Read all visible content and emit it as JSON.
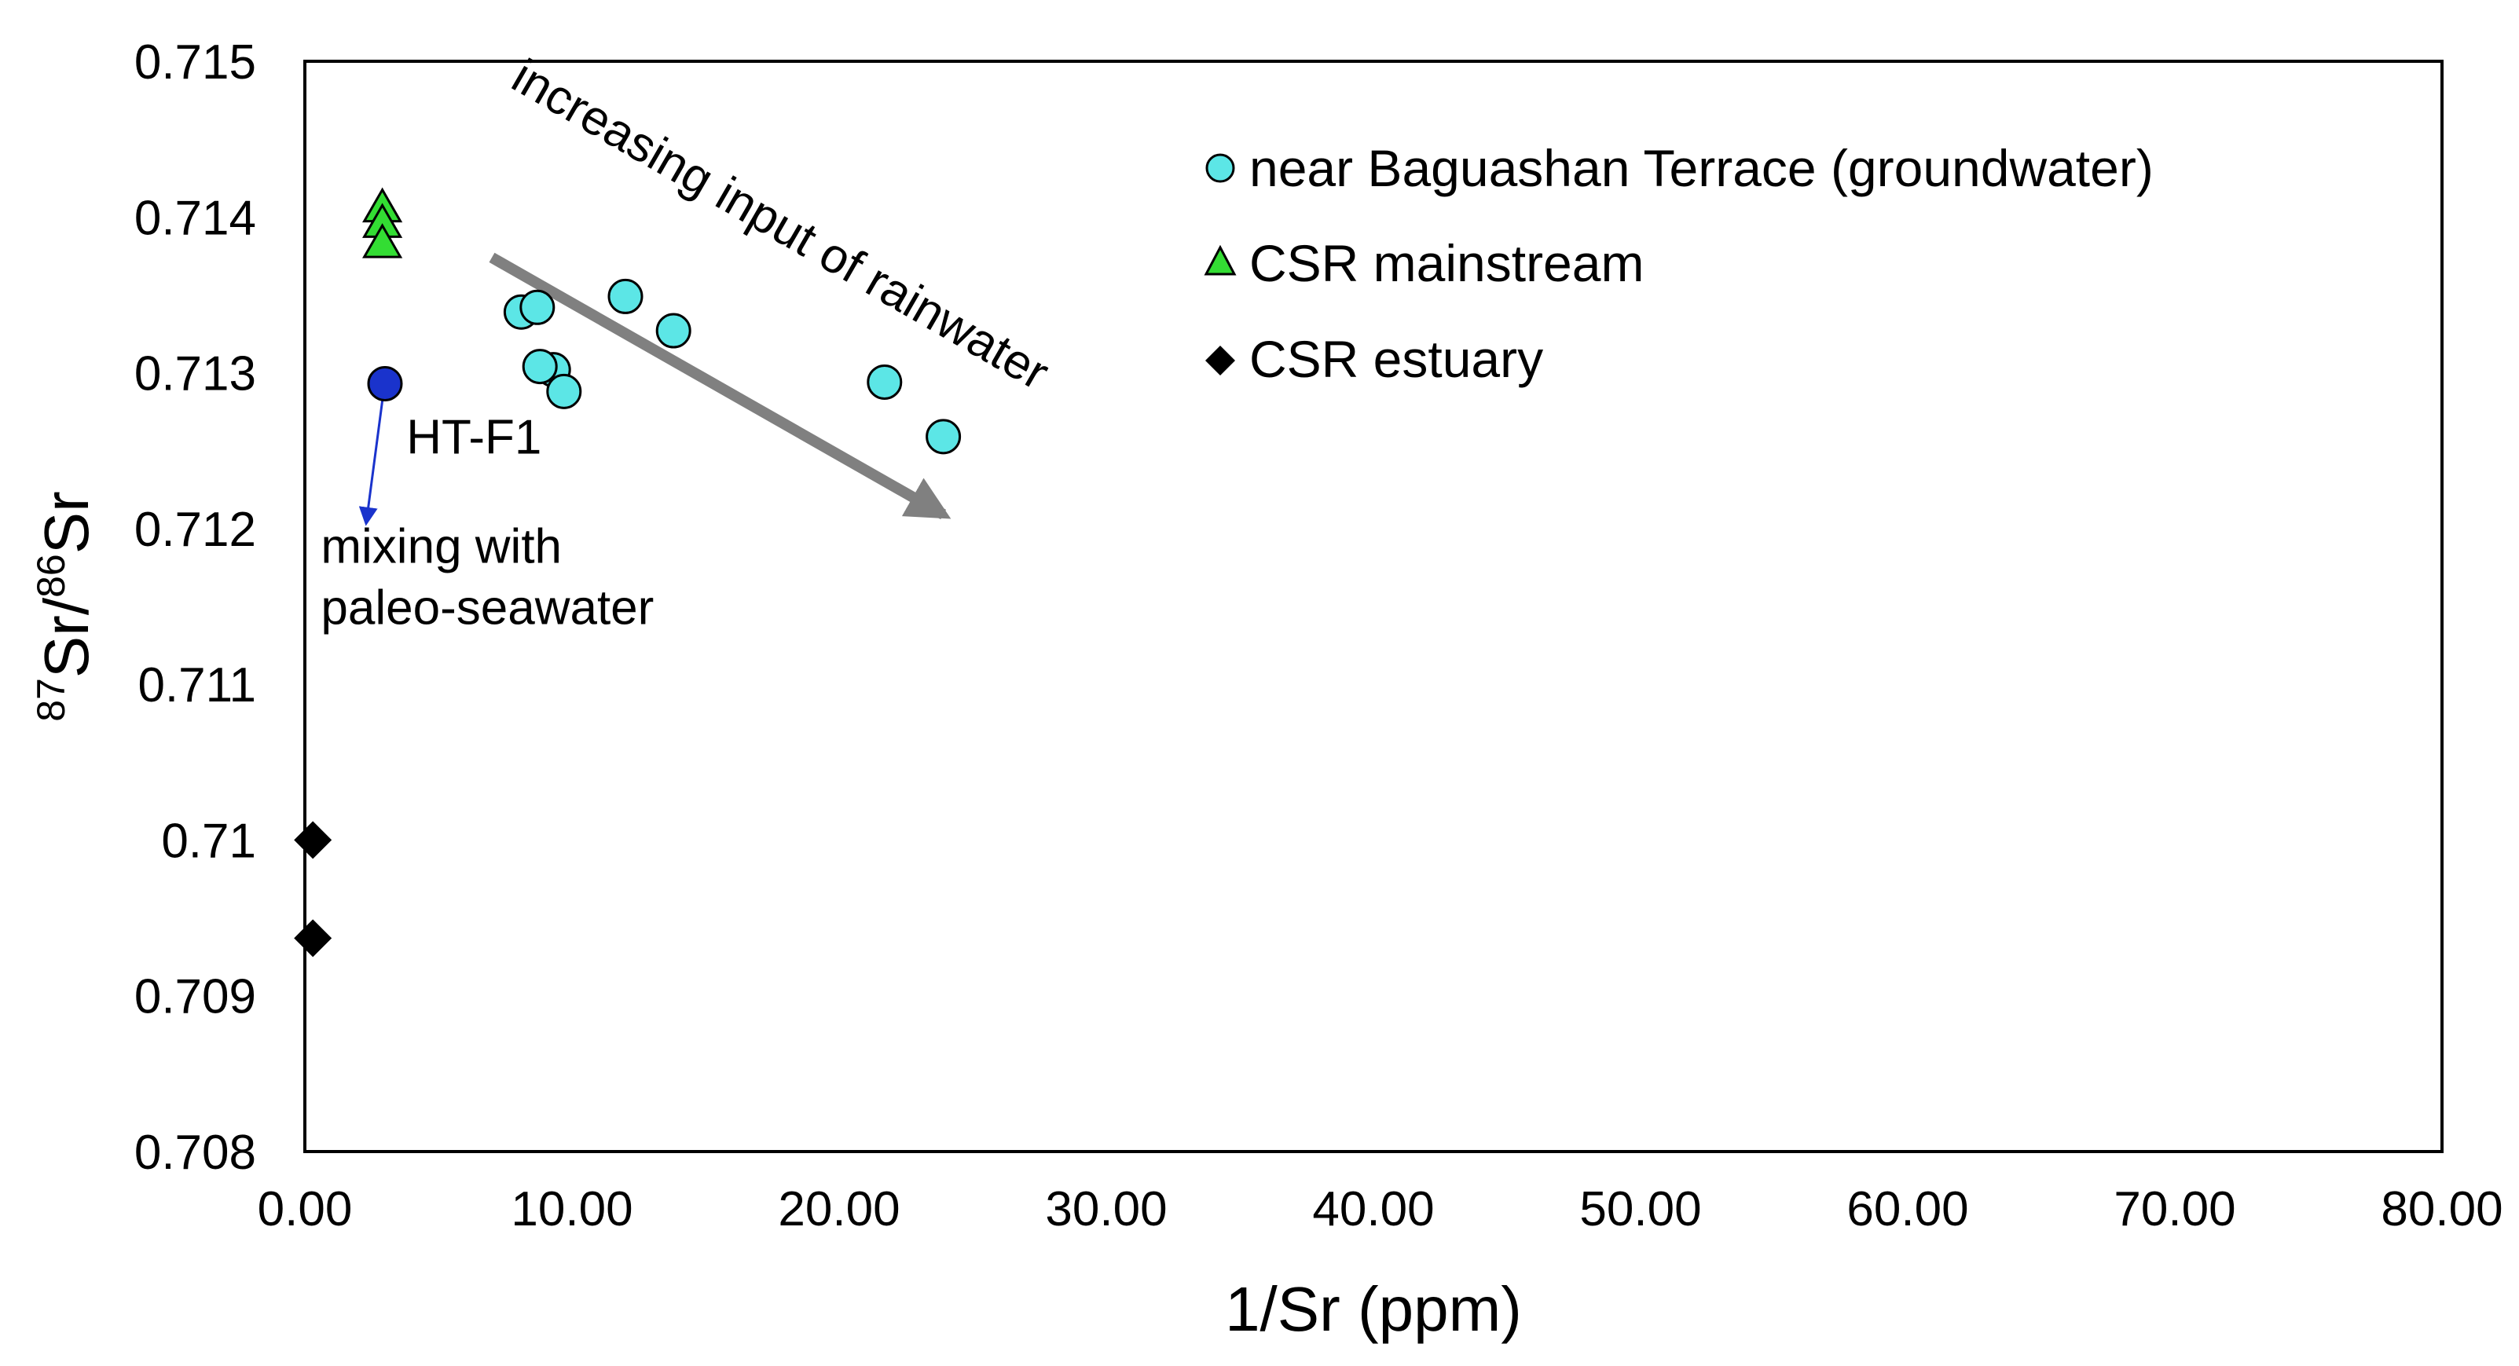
{
  "chart_data": {
    "type": "scatter",
    "title": "",
    "xlabel": "1/Sr (ppm)",
    "ylabel": {
      "sup1": "87",
      "main1": "Sr/",
      "sup2": "86",
      "main2": "Sr"
    },
    "xlim": [
      0,
      80
    ],
    "ylim": [
      0.708,
      0.715
    ],
    "grid": false,
    "legend_position": "top-right",
    "x_tick_labels": [
      "0.00",
      "10.00",
      "20.00",
      "30.00",
      "40.00",
      "50.00",
      "60.00",
      "70.00",
      "80.00"
    ],
    "y_tick_labels": [
      "0.708",
      "0.709",
      "0.71",
      "0.711",
      "0.712",
      "0.713",
      "0.714",
      "0.715"
    ],
    "series": [
      {
        "name": "near Baguashan Terrace (groundwater)",
        "marker": "circle",
        "color": "#5ce6e6",
        "points": [
          {
            "x": 8.1,
            "y": 0.71339
          },
          {
            "x": 8.7,
            "y": 0.71342
          },
          {
            "x": 9.3,
            "y": 0.71302
          },
          {
            "x": 8.8,
            "y": 0.71304
          },
          {
            "x": 9.7,
            "y": 0.71288
          },
          {
            "x": 12.0,
            "y": 0.71349
          },
          {
            "x": 13.8,
            "y": 0.71327
          },
          {
            "x": 21.7,
            "y": 0.71294
          },
          {
            "x": 23.9,
            "y": 0.71259
          }
        ]
      },
      {
        "name": "CSR mainstream",
        "marker": "triangle",
        "color": "#33dd33",
        "points": [
          {
            "x": 2.9,
            "y": 0.71405
          },
          {
            "x": 2.9,
            "y": 0.71395
          },
          {
            "x": 2.9,
            "y": 0.71382
          }
        ]
      },
      {
        "name": "CSR estuary",
        "marker": "diamond",
        "color": "#000000",
        "points": [
          {
            "x": 0.3,
            "y": 0.71
          },
          {
            "x": 0.3,
            "y": 0.70937
          }
        ]
      },
      {
        "name": "HT-F1",
        "marker": "circle",
        "color": "#1a33cc",
        "show_in_legend": false,
        "points": [
          {
            "x": 3.0,
            "y": 0.71293
          }
        ]
      }
    ],
    "annotations": [
      {
        "id": "hlabel",
        "text": "HT-F1",
        "x": 3.8,
        "y": 0.71248
      },
      {
        "id": "mixing",
        "text_line1": "mixing with",
        "text_line2": "paleo-seawater",
        "x": 0.6,
        "y": 0.71178
      },
      {
        "id": "rain",
        "text": "increasing input of rainwater",
        "x": 17.5,
        "y": 0.71386
      }
    ],
    "arrows": [
      {
        "id": "rain-arrow",
        "color": "#808080",
        "from": [
          7.0,
          0.71374
        ],
        "to": [
          23.9,
          0.71209
        ]
      },
      {
        "id": "mix-arrow",
        "color": "#1a33cc",
        "from": [
          2.9,
          0.71282
        ],
        "to": [
          2.3,
          0.71204
        ]
      }
    ]
  }
}
